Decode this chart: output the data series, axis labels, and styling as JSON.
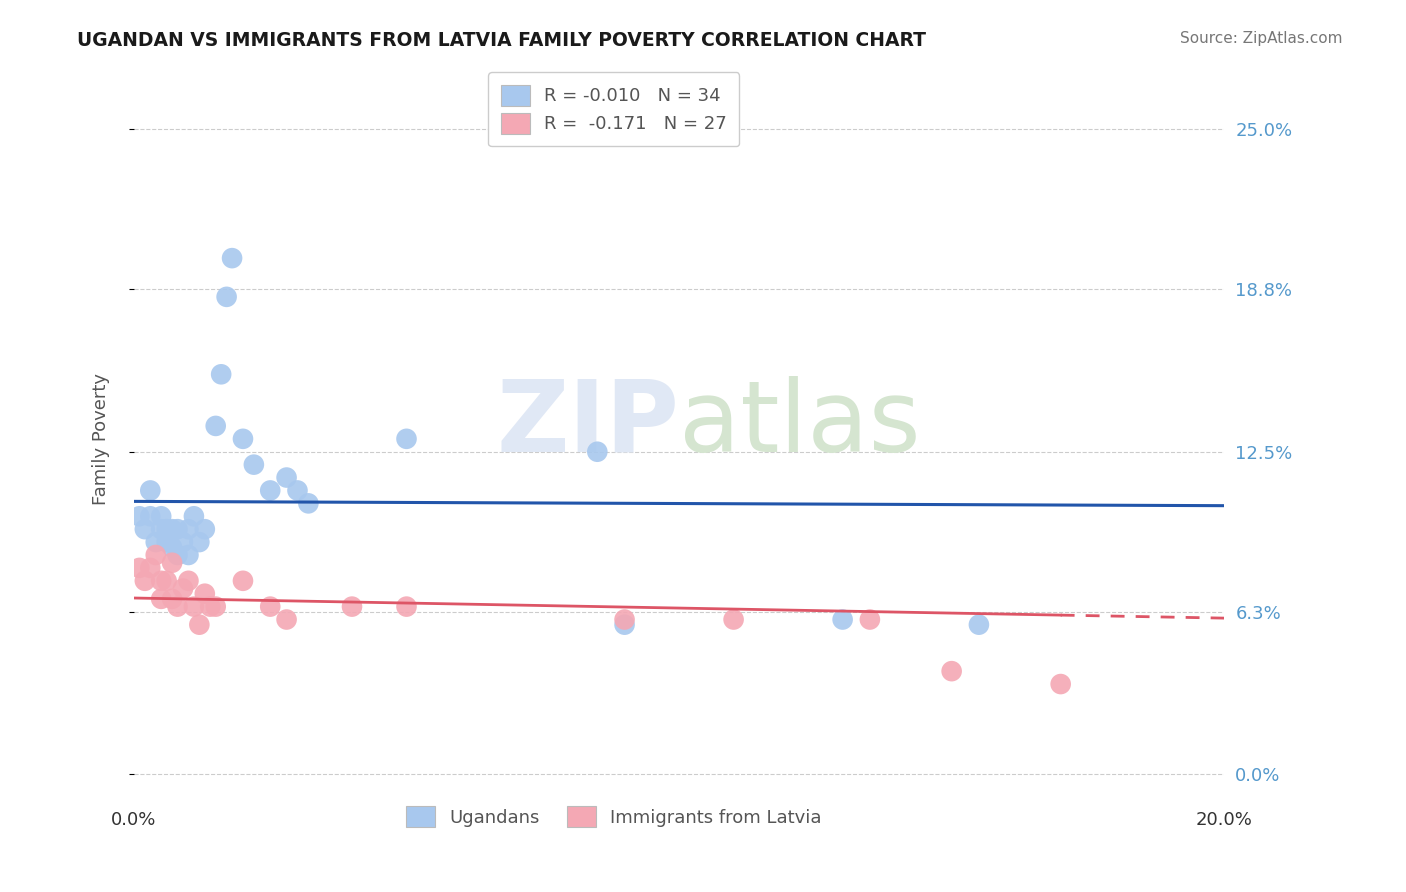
{
  "title": "UGANDAN VS IMMIGRANTS FROM LATVIA FAMILY POVERTY CORRELATION CHART",
  "source": "Source: ZipAtlas.com",
  "ylabel": "Family Poverty",
  "xlim": [
    0.0,
    0.2
  ],
  "ylim": [
    -0.01,
    0.27
  ],
  "ytick_values": [
    0.0,
    0.063,
    0.125,
    0.188,
    0.25
  ],
  "ytick_labels": [
    "0.0%",
    "6.3%",
    "12.5%",
    "18.8%",
    "25.0%"
  ],
  "xtick_values": [
    0.0,
    0.2
  ],
  "xtick_labels": [
    "0.0%",
    "20.0%"
  ],
  "watermark_zip": "ZIP",
  "watermark_atlas": "atlas",
  "legend_r1": "R = -0.010",
  "legend_n1": "N = 34",
  "legend_r2": "R =  -0.171",
  "legend_n2": "N = 27",
  "legend_label1": "Ugandans",
  "legend_label2": "Immigrants from Latvia",
  "blue_color": "#A8C8EE",
  "pink_color": "#F4A8B4",
  "line_blue": "#2255AA",
  "line_pink": "#DD5566",
  "ugandan_x": [
    0.001,
    0.002,
    0.003,
    0.003,
    0.004,
    0.005,
    0.005,
    0.006,
    0.006,
    0.007,
    0.007,
    0.008,
    0.008,
    0.009,
    0.01,
    0.01,
    0.011,
    0.012,
    0.013,
    0.015,
    0.016,
    0.017,
    0.018,
    0.02,
    0.022,
    0.025,
    0.028,
    0.03,
    0.032,
    0.05,
    0.085,
    0.09,
    0.13,
    0.155
  ],
  "ugandan_y": [
    0.1,
    0.095,
    0.1,
    0.11,
    0.09,
    0.095,
    0.1,
    0.09,
    0.095,
    0.095,
    0.088,
    0.085,
    0.095,
    0.09,
    0.095,
    0.085,
    0.1,
    0.09,
    0.095,
    0.135,
    0.155,
    0.185,
    0.2,
    0.13,
    0.12,
    0.11,
    0.115,
    0.11,
    0.105,
    0.13,
    0.125,
    0.058,
    0.06,
    0.058
  ],
  "latvia_x": [
    0.001,
    0.002,
    0.003,
    0.004,
    0.005,
    0.005,
    0.006,
    0.007,
    0.007,
    0.008,
    0.009,
    0.01,
    0.011,
    0.012,
    0.013,
    0.014,
    0.015,
    0.02,
    0.025,
    0.028,
    0.04,
    0.05,
    0.09,
    0.11,
    0.135,
    0.15,
    0.17
  ],
  "latvia_y": [
    0.08,
    0.075,
    0.08,
    0.085,
    0.075,
    0.068,
    0.075,
    0.068,
    0.082,
    0.065,
    0.072,
    0.075,
    0.065,
    0.058,
    0.07,
    0.065,
    0.065,
    0.075,
    0.065,
    0.06,
    0.065,
    0.065,
    0.06,
    0.06,
    0.06,
    0.04,
    0.035
  ]
}
